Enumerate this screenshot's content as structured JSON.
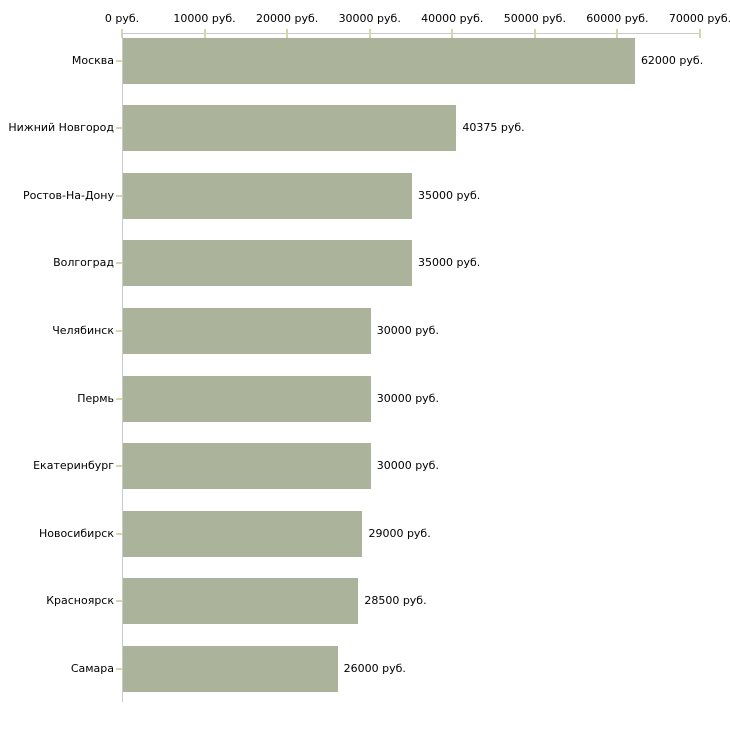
{
  "chart_data": {
    "type": "bar",
    "orientation": "horizontal",
    "title": "",
    "xlabel": "",
    "ylabel": "",
    "categories": [
      "Москва",
      "Нижний Новгород",
      "Ростов-На-Дону",
      "Волгоград",
      "Челябинск",
      "Пермь",
      "Екатеринбург",
      "Новосибирск",
      "Красноярск",
      "Самара"
    ],
    "values": [
      62000,
      40375,
      35000,
      35000,
      30000,
      30000,
      30000,
      29000,
      28500,
      26000
    ],
    "value_labels": [
      "62000 руб.",
      "40375 руб.",
      "35000 руб.",
      "35000 руб.",
      "30000 руб.",
      "30000 руб.",
      "30000 руб.",
      "29000 руб.",
      "28500 руб.",
      "26000 руб."
    ],
    "x_tick_values": [
      0,
      10000,
      20000,
      30000,
      40000,
      50000,
      60000,
      70000
    ],
    "x_tick_labels": [
      "0 руб.",
      "10000 руб.",
      "20000 руб.",
      "30000 руб.",
      "40000 руб.",
      "50000 руб.",
      "60000 руб.",
      "70000 руб."
    ],
    "xlim": [
      0,
      70000
    ],
    "grid": false,
    "legend": "none",
    "colors": {
      "bar": "#abb49a",
      "axis_line": "#c9c9c9",
      "tick_mark": "#d9d5ab",
      "text": "#000000",
      "background": "#ffffff"
    }
  }
}
